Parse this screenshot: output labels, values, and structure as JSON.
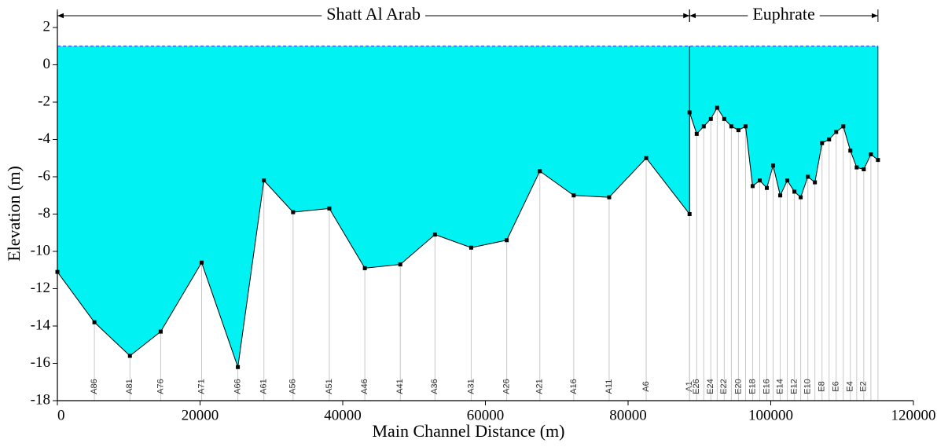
{
  "chart_data": {
    "type": "profile",
    "xlabel": "Main Channel Distance (m)",
    "ylabel": "Elevation (m)",
    "xlim": [
      0,
      120000
    ],
    "ylim": [
      -18,
      2
    ],
    "xticks": [
      0,
      20000,
      40000,
      60000,
      80000,
      100000,
      120000
    ],
    "yticks": [
      2,
      0,
      -2,
      -4,
      -6,
      -8,
      -10,
      -12,
      -14,
      -16,
      -18
    ],
    "water_surface": 1,
    "water_color": "#00f2f2",
    "bed_color": "#000000",
    "reaches": [
      {
        "name": "Shatt Al Arab",
        "start": 0,
        "end": 88620
      },
      {
        "name": "Euphrate",
        "start": 88620,
        "end": 115030
      }
    ],
    "x": [
      0,
      5190,
      10170,
      14480,
      20220,
      25300,
      28950,
      33040,
      38120,
      43100,
      48070,
      52930,
      58010,
      62990,
      67630,
      72380,
      77350,
      82540,
      88620,
      88620,
      89620,
      90610,
      91600,
      92490,
      93480,
      94480,
      95470,
      96470,
      97460,
      98460,
      99450,
      100330,
      101330,
      102320,
      103320,
      104200,
      105200,
      106190,
      107190,
      108180,
      109170,
      110170,
      111160,
      112050,
      113040,
      114040,
      115030
    ],
    "values": [
      -11.1,
      -13.8,
      -15.6,
      -14.3,
      -10.6,
      -16.2,
      -6.2,
      -7.9,
      -7.7,
      -10.9,
      -10.7,
      -9.1,
      -9.8,
      -9.4,
      -5.7,
      -7.0,
      -7.1,
      -5.0,
      -8.0,
      -2.55,
      -3.7,
      -3.3,
      -2.9,
      -2.3,
      -2.9,
      -3.3,
      -3.5,
      -3.3,
      -6.5,
      -6.2,
      -6.6,
      -5.4,
      -7.0,
      -6.2,
      -6.8,
      -7.1,
      -6.0,
      -6.3,
      -4.2,
      -4.0,
      -3.6,
      -3.3,
      -4.6,
      -5.5,
      -5.6,
      -4.8,
      -5.1
    ],
    "labels": [
      null,
      "A86",
      "A81",
      "A76",
      "A71",
      "A66",
      "A61",
      "A56",
      "A51",
      "A46",
      "A41",
      "A36",
      "A31",
      "A26",
      "A21",
      "A16",
      "A11",
      "A6",
      "A1",
      null,
      "E26",
      null,
      "E24",
      null,
      "E22",
      null,
      "E20",
      null,
      "E18",
      null,
      "E16",
      null,
      "E14",
      null,
      "E12",
      null,
      "E10",
      null,
      "E8",
      null,
      "E6",
      null,
      "E4",
      null,
      "E2",
      null,
      null
    ]
  }
}
